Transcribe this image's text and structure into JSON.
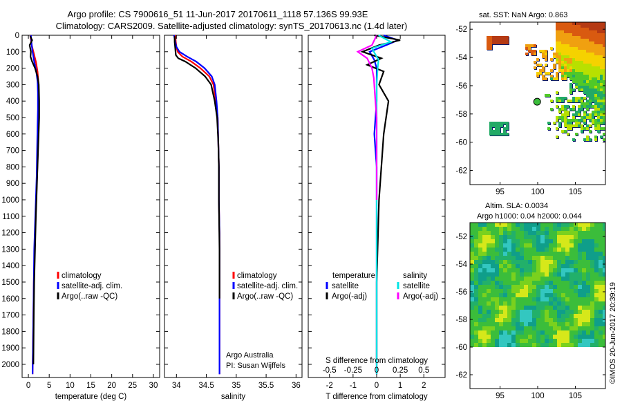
{
  "header": {
    "title_line1": "Argo profile: CS 7900616_51 11-Jun-2017 20170611_1118 57.136S 99.93E",
    "title_line2": "Climatology: CARS2009. Satellite-adjusted climatology: synTS_20170613.nc (1.4d later)"
  },
  "colors": {
    "climatology": "#ff0000",
    "satellite": "#0000ff",
    "argo": "#000000",
    "sal_satellite": "#00e5e5",
    "sal_argo": "#ff00ff"
  },
  "chart_data": [
    {
      "name": "temperature-profile",
      "type": "line",
      "xlabel": "temperature (deg C)",
      "ylabel": "",
      "xlim": [
        -1.5,
        31.5
      ],
      "ylim": [
        2080,
        0
      ],
      "xticks": [
        "0",
        "5",
        "10",
        "15",
        "20",
        "25",
        "30"
      ],
      "xtick_values": [
        0,
        5,
        10,
        15,
        20,
        25,
        30
      ],
      "yticks": [
        "0",
        "100",
        "200",
        "300",
        "400",
        "500",
        "600",
        "700",
        "800",
        "900",
        "1000",
        "1100",
        "1200",
        "1300",
        "1400",
        "1500",
        "1600",
        "1700",
        "1800",
        "1900",
        "2000"
      ],
      "ytick_values": [
        0,
        100,
        200,
        300,
        400,
        500,
        600,
        700,
        800,
        900,
        1000,
        1100,
        1200,
        1300,
        1400,
        1500,
        1600,
        1700,
        1800,
        1900,
        2000
      ],
      "legend": [
        "climatology",
        "satellite-adj. clim.",
        "Argo(..raw -QC)"
      ],
      "series": [
        {
          "name": "climatology",
          "color_key": "climatology",
          "x": [
            0.5,
            0.6,
            0.8,
            1.2,
            1.8,
            2.2,
            2.4,
            2.5,
            2.5,
            2.4,
            2.3,
            2.1,
            1.9,
            1.7,
            1.5,
            1.3,
            1.2,
            1.1,
            1.0
          ],
          "y": [
            0,
            30,
            60,
            100,
            160,
            220,
            280,
            350,
            450,
            550,
            700,
            850,
            1000,
            1150,
            1300,
            1500,
            1700,
            1900,
            2060
          ]
        },
        {
          "name": "satellite-adj. clim.",
          "color_key": "satellite",
          "x": [
            0.6,
            0.7,
            0.8,
            1.0,
            1.4,
            1.9,
            2.2,
            2.3,
            2.3,
            2.2,
            2.1,
            2.0,
            1.8,
            1.6,
            1.4,
            1.3,
            1.2,
            1.1,
            1.0
          ],
          "y": [
            0,
            30,
            60,
            100,
            160,
            220,
            280,
            350,
            450,
            550,
            700,
            850,
            1000,
            1150,
            1300,
            1500,
            1700,
            1900,
            2060
          ]
        },
        {
          "name": "Argo(..raw -QC)",
          "color_key": "argo",
          "x": [
            0.4,
            0.9,
            0.3,
            0.6,
            0.5,
            0.9,
            1.6,
            2.2,
            2.5,
            2.6,
            2.6,
            2.4,
            2.2,
            2.0,
            1.8,
            1.6,
            1.4,
            1.3,
            1.2
          ],
          "y": [
            5,
            30,
            60,
            100,
            130,
            160,
            200,
            250,
            300,
            400,
            500,
            650,
            800,
            950,
            1100,
            1300,
            1500,
            1700,
            2000
          ]
        }
      ]
    },
    {
      "name": "salinity-profile",
      "type": "line",
      "xlabel": "salinity",
      "xlim": [
        33.8,
        36.1
      ],
      "ylim": [
        2080,
        0
      ],
      "xticks": [
        "34",
        "34.5",
        "35",
        "35.5",
        "36"
      ],
      "xtick_values": [
        34,
        34.5,
        35,
        35.5,
        36
      ],
      "legend": [
        "climatology",
        "satellite-adj. clim.",
        "Argo(..raw -QC)"
      ],
      "annotation": [
        "Argo Australia",
        "PI: Susan Wijffels"
      ],
      "series": [
        {
          "name": "climatology",
          "color_key": "climatology",
          "x": [
            33.98,
            33.99,
            34.0,
            34.02,
            34.1,
            34.25,
            34.4,
            34.55,
            34.62,
            34.66,
            34.69,
            34.7,
            34.71,
            34.71,
            34.72,
            34.72,
            34.72,
            34.72,
            34.72
          ],
          "y": [
            0,
            40,
            70,
            100,
            130,
            160,
            200,
            250,
            300,
            400,
            500,
            650,
            800,
            1000,
            1200,
            1400,
            1600,
            1800,
            2060
          ]
        },
        {
          "name": "satellite-adj. clim.",
          "color_key": "satellite",
          "x": [
            33.96,
            33.98,
            34.0,
            34.05,
            34.18,
            34.33,
            34.47,
            34.59,
            34.64,
            34.67,
            34.69,
            34.7,
            34.71,
            34.71,
            34.72,
            34.72,
            34.72,
            34.72,
            34.72
          ],
          "y": [
            0,
            40,
            70,
            100,
            130,
            160,
            200,
            250,
            300,
            400,
            500,
            650,
            800,
            1000,
            1200,
            1400,
            1600,
            1800,
            2060
          ]
        },
        {
          "name": "Argo(..raw -QC)",
          "color_key": "argo",
          "x": [
            33.97,
            33.97,
            33.98,
            33.99,
            34.03,
            34.15,
            34.32,
            34.48,
            34.58,
            34.64,
            34.68,
            34.7,
            34.71,
            34.71,
            34.72,
            34.72
          ],
          "y": [
            5,
            40,
            80,
            120,
            140,
            160,
            200,
            250,
            300,
            400,
            500,
            650,
            800,
            1000,
            1300,
            1600
          ]
        }
      ]
    },
    {
      "name": "difference-profile",
      "type": "line",
      "xlabel": "T difference from climatology",
      "top_label": "S difference from climatology",
      "xlim": [
        -2.9,
        2.9
      ],
      "ylim": [
        2080,
        0
      ],
      "xticks": [
        "-2",
        "-1",
        "0",
        "1",
        "2"
      ],
      "xtick_values": [
        -2,
        -1,
        0,
        1,
        2
      ],
      "sticks": [
        "-0.5",
        "-0.25",
        "0",
        "0.25",
        "0.5"
      ],
      "stick_values": [
        -0.5,
        -0.25,
        0,
        0.25,
        0.5
      ],
      "legend_headers": [
        "temperature",
        "salinity"
      ],
      "legend": [
        "satellite",
        "Argo(-adj)",
        "satellite",
        "Argo(-adj)"
      ],
      "series": [
        {
          "name": "temperature satellite",
          "color_key": "satellite",
          "unit": "T",
          "x": [
            0.3,
            0.9,
            0.4,
            -0.3,
            -0.1,
            0.0,
            0.0,
            0.0,
            -0.1,
            0.0,
            0.0,
            0.0,
            0.0,
            0.0
          ],
          "y": [
            0,
            30,
            60,
            100,
            150,
            200,
            300,
            400,
            600,
            800,
            1000,
            1400,
            1800,
            2060
          ]
        },
        {
          "name": "temperature Argo(-adj)",
          "color_key": "argo",
          "unit": "T",
          "x": [
            -0.1,
            1.0,
            0.1,
            -0.6,
            0.2,
            -0.4,
            0.3,
            0.1,
            0.5,
            0.3,
            0.2,
            0.1,
            0.0,
            0.0
          ],
          "y": [
            0,
            30,
            60,
            100,
            140,
            180,
            220,
            300,
            400,
            600,
            800,
            1000,
            1500,
            2000
          ]
        },
        {
          "name": "salinity satellite",
          "color_key": "sal_satellite",
          "unit": "S",
          "x": [
            0.02,
            0.15,
            -0.05,
            0.02,
            0.01,
            0.0,
            0.0,
            0.0,
            0.0
          ],
          "y": [
            0,
            40,
            80,
            150,
            200,
            300,
            600,
            1000,
            2060
          ]
        },
        {
          "name": "salinity Argo(-adj)",
          "color_key": "sal_argo",
          "unit": "S",
          "x": [
            0.0,
            -0.05,
            -0.2,
            -0.1,
            -0.05,
            -0.03,
            -0.02,
            0.0,
            0.0
          ],
          "y": [
            0,
            60,
            100,
            140,
            200,
            260,
            350,
            500,
            1000
          ]
        }
      ]
    },
    {
      "name": "sst-map",
      "type": "heatmap",
      "title": "sat. SST: NaN Argo: 0.863",
      "xlim": [
        91,
        109
      ],
      "ylim": [
        -63,
        -51.5
      ],
      "xticks": [
        "95",
        "100",
        "105"
      ],
      "xtick_values": [
        95,
        100,
        105
      ],
      "yticks": [
        "-52",
        "-54",
        "-56",
        "-58",
        "-60",
        "-62"
      ],
      "ytick_values": [
        -52,
        -54,
        -56,
        -58,
        -60,
        -62
      ],
      "argo_position": {
        "lon": 99.93,
        "lat": -57.136
      },
      "palette": [
        "#b53a14",
        "#d95a10",
        "#f0a010",
        "#f5d200",
        "#b8e000",
        "#50c828",
        "#22aa66"
      ]
    },
    {
      "name": "sla-map",
      "type": "heatmap",
      "title": "Altim. SLA: 0.0034",
      "subtitle": "Argo h1000: 0.04 h2000: 0.044",
      "xlim": [
        91,
        109
      ],
      "ylim": [
        -63,
        -51
      ],
      "xticks": [
        "95",
        "100",
        "105"
      ],
      "xtick_values": [
        95,
        100,
        105
      ],
      "yticks": [
        "-52",
        "-54",
        "-56",
        "-58",
        "-60",
        "-62"
      ],
      "ytick_values": [
        -52,
        -54,
        -56,
        -58,
        -60,
        -62
      ],
      "data_bottom_lat": -60,
      "palette": [
        "#0f9e8a",
        "#22b06a",
        "#3bbd3b",
        "#7ad11e",
        "#d6e81a",
        "#33c7c0"
      ]
    }
  ],
  "footer": {
    "credit": "©IMOS 20-Jun-2017 20:39:19"
  }
}
